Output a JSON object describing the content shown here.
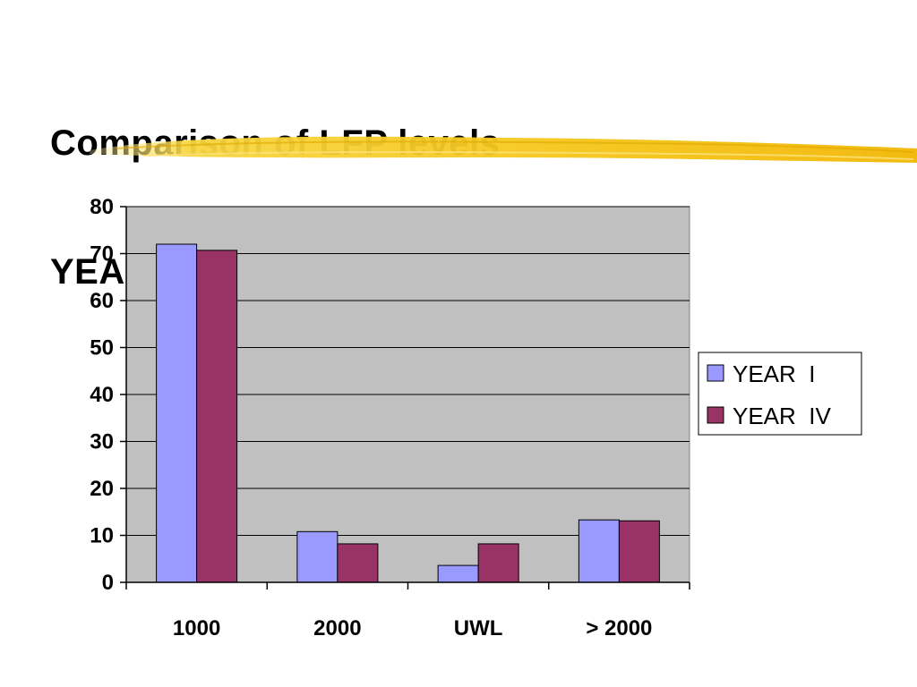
{
  "slide": {
    "title_line1": "Comparison of LFP levels",
    "title_line2": "YEAR  I  &  YEAR  IV"
  },
  "colors": {
    "plot_bg": "#c0c0c0",
    "year1": "#9999ff",
    "year4": "#993366",
    "gridline": "#000000",
    "brush": "#f5c518"
  },
  "chart_data": {
    "type": "bar",
    "categories": [
      "1000",
      "2000",
      "UWL",
      "> 2000"
    ],
    "series": [
      {
        "name": "YEAR  I",
        "values": [
          72,
          10.8,
          3.6,
          13.3
        ]
      },
      {
        "name": "YEAR  IV",
        "values": [
          70.7,
          8.2,
          8.2,
          13.1
        ]
      }
    ],
    "ylim": [
      0,
      80
    ],
    "yticks": [
      "0",
      "10",
      "20",
      "30",
      "40",
      "50",
      "60",
      "70",
      "80"
    ],
    "grid": true,
    "legend": "right"
  }
}
